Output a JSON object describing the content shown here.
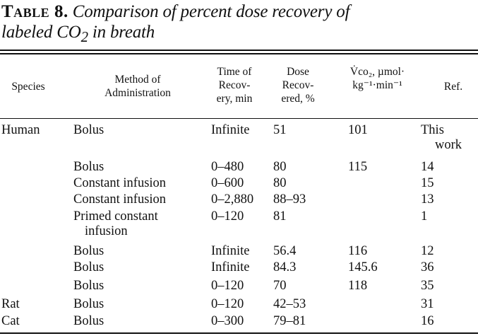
{
  "caption": {
    "label": "Table 8.",
    "title_line1": "Comparison of percent dose recovery of",
    "title_line2_pre": "labeled CO",
    "title_line2_sub": "2",
    "title_line2_post": " in breath"
  },
  "headers": {
    "species": "Species",
    "method": [
      "Method of",
      "Administration"
    ],
    "time": [
      "Time of",
      "Recov-",
      "ery, min"
    ],
    "dose": [
      "Dose",
      "Recov-",
      "ered, %"
    ],
    "vco2": [
      "V̇co₂, µmol·",
      "kg⁻¹·min⁻¹"
    ],
    "ref": "Ref."
  },
  "rows": [
    {
      "species": "Human",
      "method": "Bolus",
      "method2": "",
      "time": "Infinite",
      "dose": "51",
      "vco2": "101",
      "ref": "This",
      "ref2": "work"
    },
    {
      "species": "",
      "method": "Bolus",
      "method2": "",
      "time": "0–480",
      "dose": "80",
      "vco2": "115",
      "ref": "14",
      "ref2": ""
    },
    {
      "species": "",
      "method": "Constant infusion",
      "method2": "",
      "time": "0–600",
      "dose": "80",
      "vco2": "",
      "ref": "15",
      "ref2": ""
    },
    {
      "species": "",
      "method": "Constant infusion",
      "method2": "",
      "time": "0–2,880",
      "dose": "88–93",
      "vco2": "",
      "ref": "13",
      "ref2": ""
    },
    {
      "species": "",
      "method": "Primed constant",
      "method2": "infusion",
      "time": "0–120",
      "dose": "81",
      "vco2": "",
      "ref": "1",
      "ref2": ""
    },
    {
      "species": "",
      "method": "Bolus",
      "method2": "",
      "time": "Infinite",
      "dose": "56.4",
      "vco2": "116",
      "ref": "12",
      "ref2": ""
    },
    {
      "species": "",
      "method": "Bolus",
      "method2": "",
      "time": "Infinite",
      "dose": "84.3",
      "vco2": "145.6",
      "ref": "36",
      "ref2": ""
    },
    {
      "species": "",
      "method": "Bolus",
      "method2": "",
      "time": "0–120",
      "dose": "70",
      "vco2": "118",
      "ref": "35",
      "ref2": ""
    },
    {
      "species": "Rat",
      "method": "Bolus",
      "method2": "",
      "time": "0–120",
      "dose": "42–53",
      "vco2": "",
      "ref": "31",
      "ref2": ""
    },
    {
      "species": "Cat",
      "method": "Bolus",
      "method2": "",
      "time": "0–300",
      "dose": "79–81",
      "vco2": "",
      "ref": "16",
      "ref2": ""
    }
  ]
}
